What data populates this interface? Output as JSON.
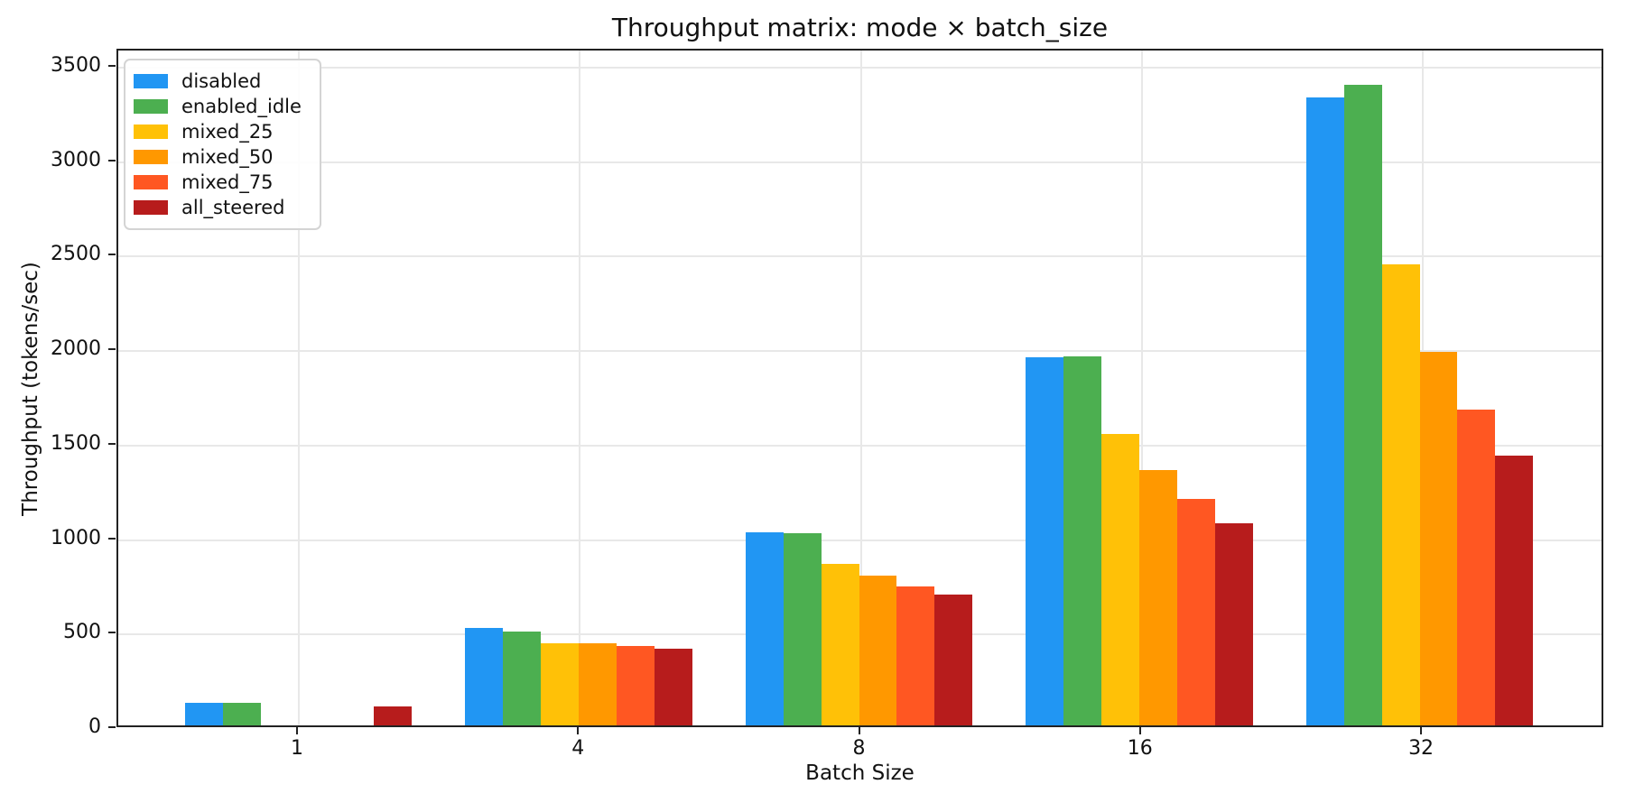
{
  "figure": {
    "title": "Throughput matrix: mode × batch_size",
    "xlabel": "Batch Size",
    "ylabel": "Throughput (tokens/sec)"
  },
  "chart_data": {
    "type": "bar",
    "title": "Throughput matrix: mode × batch_size",
    "xlabel": "Batch Size",
    "ylabel": "Throughput (tokens/sec)",
    "categories": [
      "1",
      "4",
      "8",
      "16",
      "32"
    ],
    "series": [
      {
        "name": "disabled",
        "color": "#2196F3",
        "values": [
          121,
          520,
          1025,
          1957,
          3340
        ]
      },
      {
        "name": "enabled_idle",
        "color": "#4CAF50",
        "values": [
          122,
          497,
          1022,
          1962,
          3408
        ]
      },
      {
        "name": "mixed_25",
        "color": "#FFC107",
        "values": [
          0,
          437,
          858,
          1548,
          2452
        ]
      },
      {
        "name": "mixed_50",
        "color": "#FF9800",
        "values": [
          0,
          436,
          796,
          1360,
          1989
        ]
      },
      {
        "name": "mixed_75",
        "color": "#FF5722",
        "values": [
          0,
          424,
          741,
          1204,
          1678
        ]
      },
      {
        "name": "all_steered",
        "color": "#B71C1C",
        "values": [
          101,
          407,
          698,
          1077,
          1436
        ]
      }
    ],
    "ylim": [
      0,
      3590
    ],
    "yticks": [
      0,
      500,
      1000,
      1500,
      2000,
      2500,
      3000,
      3500
    ],
    "grid": true,
    "legend_position": "upper left",
    "background_color": "#ffffff",
    "grid_color": "#e8e8e8"
  }
}
